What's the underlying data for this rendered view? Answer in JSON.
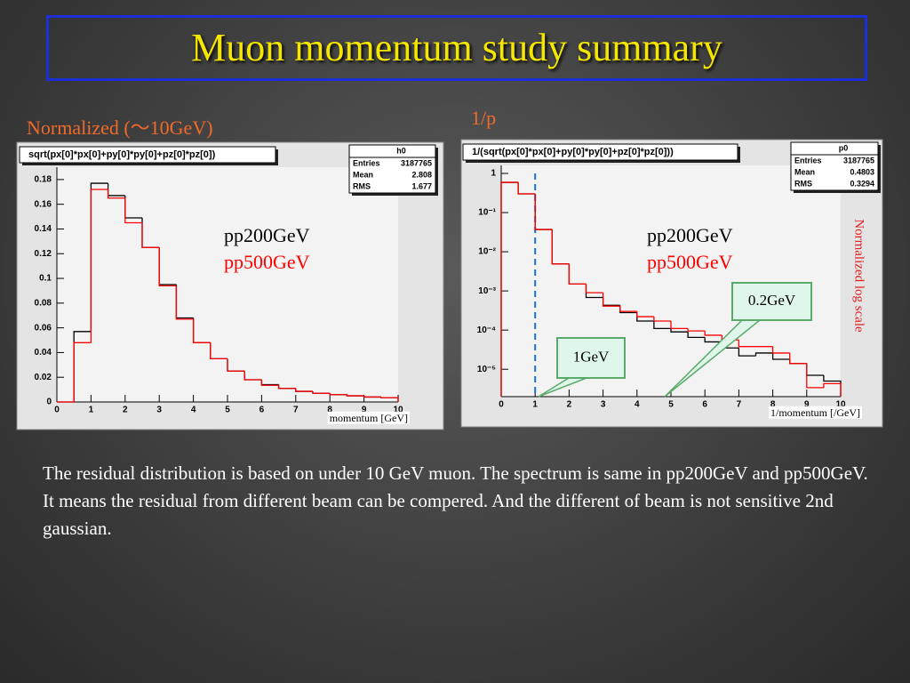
{
  "title": "Muon momentum study summary",
  "body": "The residual distribution is based on under 10 GeV muon. The spectrum is same in pp200GeV and pp500GeV. It means the residual from different beam can be compered. And the different of beam is not sensitive 2nd gaussian.",
  "chart_data": [
    {
      "type": "histogram",
      "label": "Normalized (～10GeV)",
      "title": "sqrt(px[0]*px[0]+py[0]*py[0]+pz[0]*pz[0])",
      "stats": {
        "name": "h0",
        "rows": [
          {
            "label": "Entries",
            "value": 3187765
          },
          {
            "label": "Mean",
            "value": 2.808
          },
          {
            "label": "RMS",
            "value": 1.677
          }
        ]
      },
      "x_label": "momentum [GeV]",
      "bins": [
        0,
        0.5,
        1,
        1.5,
        2,
        2.5,
        3,
        3.5,
        4,
        4.5,
        5,
        5.5,
        6,
        6.5,
        7,
        7.5,
        8,
        8.5,
        9,
        9.5,
        10
      ],
      "series": [
        {
          "name": "pp200GeV",
          "color": "#000000",
          "values": [
            0,
            0.057,
            0.177,
            0.167,
            0.149,
            0.125,
            0.095,
            0.068,
            0.048,
            0.035,
            0.025,
            0.018,
            0.014,
            0.011,
            0.0086,
            0.007,
            0.006,
            0.005,
            0.004,
            0.0035
          ]
        },
        {
          "name": "pp500GeV",
          "color": "#ff0000",
          "values": [
            0,
            0.048,
            0.172,
            0.165,
            0.145,
            0.125,
            0.094,
            0.067,
            0.048,
            0.035,
            0.025,
            0.018,
            0.0135,
            0.011,
            0.0086,
            0.007,
            0.006,
            0.005,
            0.004,
            0.0035
          ]
        }
      ],
      "xlim": [
        0,
        10
      ],
      "xticks": [
        0,
        1,
        2,
        3,
        4,
        5,
        6,
        7,
        8,
        9,
        10
      ],
      "ylim": [
        0,
        0.19
      ],
      "yticks": [
        0,
        0.02,
        0.04,
        0.06,
        0.08,
        0.1,
        0.12,
        0.14,
        0.16,
        0.18
      ],
      "log_y": false
    },
    {
      "type": "histogram",
      "label": "1/p",
      "title": "1/(sqrt(px[0]*px[0]+py[0]*py[0]+pz[0]*pz[0]))",
      "stats": {
        "name": "p0",
        "rows": [
          {
            "label": "Entries",
            "value": 3187765
          },
          {
            "label": "Mean",
            "value": 0.4803
          },
          {
            "label": "RMS",
            "value": 0.3294
          }
        ]
      },
      "x_label": "1/momentum [/GeV]",
      "side_label": "Normalized log scale",
      "annotations": [
        "1GeV",
        "0.2GeV"
      ],
      "cut_x": 1,
      "bins": [
        0,
        0.5,
        1,
        1.5,
        2,
        2.5,
        3,
        3.5,
        4,
        4.5,
        5,
        5.5,
        6,
        6.5,
        7,
        7.5,
        8,
        8.5,
        9,
        9.5,
        10
      ],
      "series": [
        {
          "name": "pp200GeV",
          "color": "#000000",
          "values": [
            0.59,
            0.3,
            0.037,
            0.0049,
            0.0015,
            0.00068,
            0.00043,
            0.00028,
            0.00017,
            0.00011,
            9e-05,
            6.5e-05,
            5e-05,
            3.5e-05,
            2.2e-05,
            2.6e-05,
            1.8e-05,
            1.4e-05,
            7e-06,
            5e-06
          ]
        },
        {
          "name": "pp500GeV",
          "color": "#ff0000",
          "values": [
            0.59,
            0.3,
            0.037,
            0.0049,
            0.0015,
            0.0009,
            0.00041,
            0.0003,
            0.00022,
            0.00017,
            0.00011,
            9.5e-05,
            7.4e-05,
            5.6e-05,
            3.8e-05,
            3.8e-05,
            2.6e-05,
            1.4e-05,
            3.4e-06,
            4.3e-06
          ]
        }
      ],
      "xlim": [
        0,
        10
      ],
      "xticks": [
        0,
        1,
        2,
        3,
        4,
        5,
        6,
        7,
        8,
        9,
        10
      ],
      "ylim": [
        2e-06,
        1.6
      ],
      "yticks": [
        {
          "value": 1,
          "label": "1"
        },
        {
          "value": 0.1,
          "label": "10⁻¹"
        },
        {
          "value": 0.01,
          "label": "10⁻²"
        },
        {
          "value": 0.001,
          "label": "10⁻³"
        },
        {
          "value": 0.0001,
          "label": "10⁻⁴"
        },
        {
          "value": 1e-05,
          "label": "10⁻⁵"
        }
      ],
      "log_y": true
    }
  ]
}
